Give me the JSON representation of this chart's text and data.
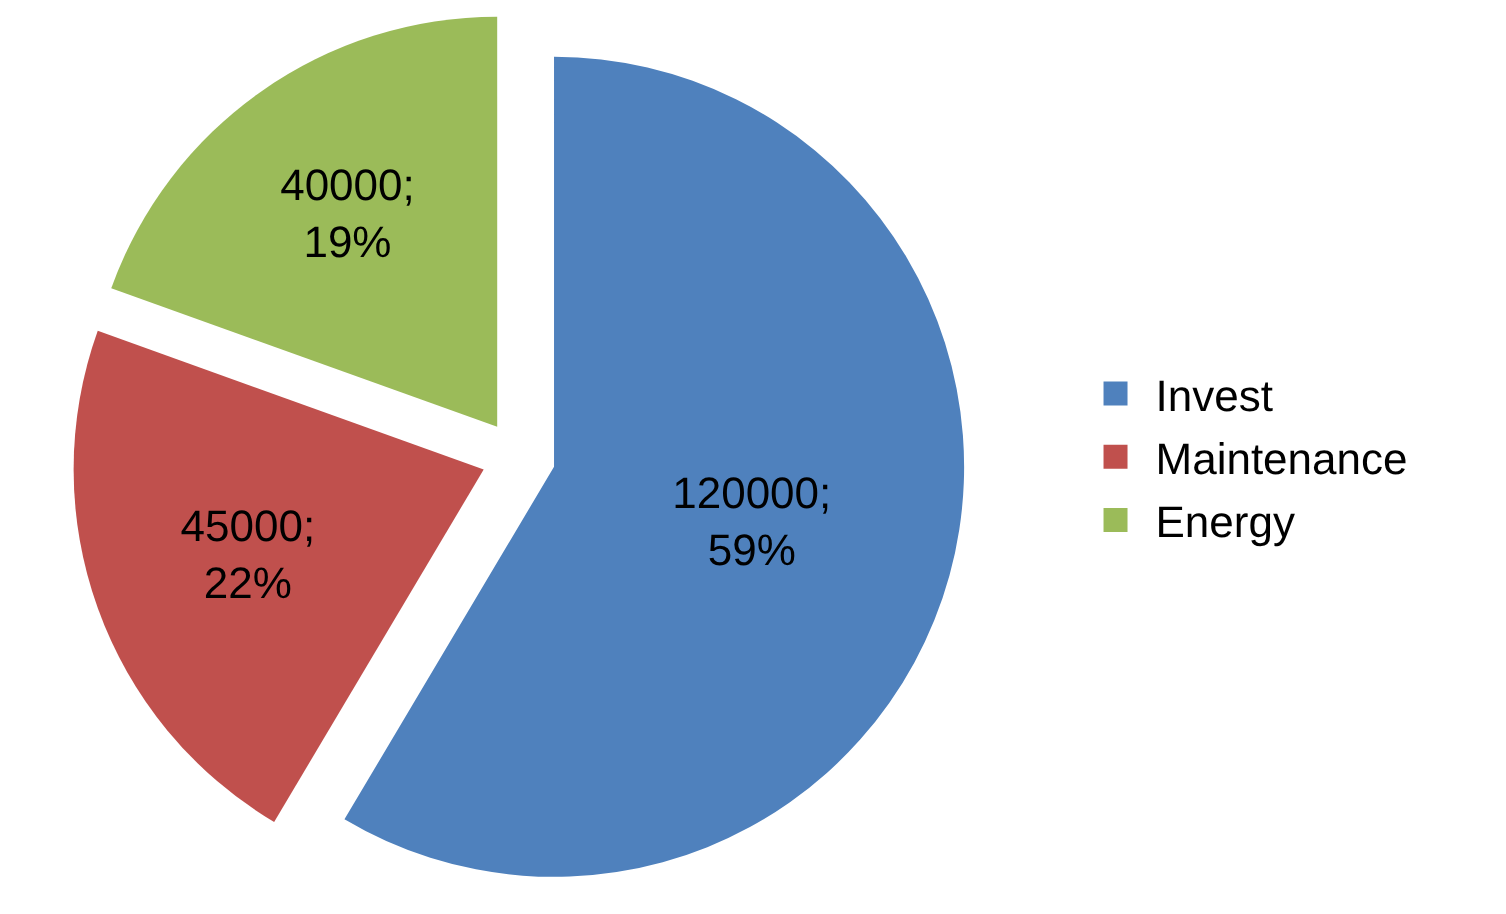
{
  "chart_data": {
    "type": "pie",
    "categories": [
      "Invest",
      "Maintenance",
      "Energy"
    ],
    "values": [
      120000,
      45000,
      40000
    ],
    "colors": [
      "#4f81bd",
      "#c0504d",
      "#9bbb59"
    ],
    "value_labels": [
      "120000;\n59%",
      "45000;\n22%",
      "40000;\n19%"
    ],
    "legend": "right"
  }
}
